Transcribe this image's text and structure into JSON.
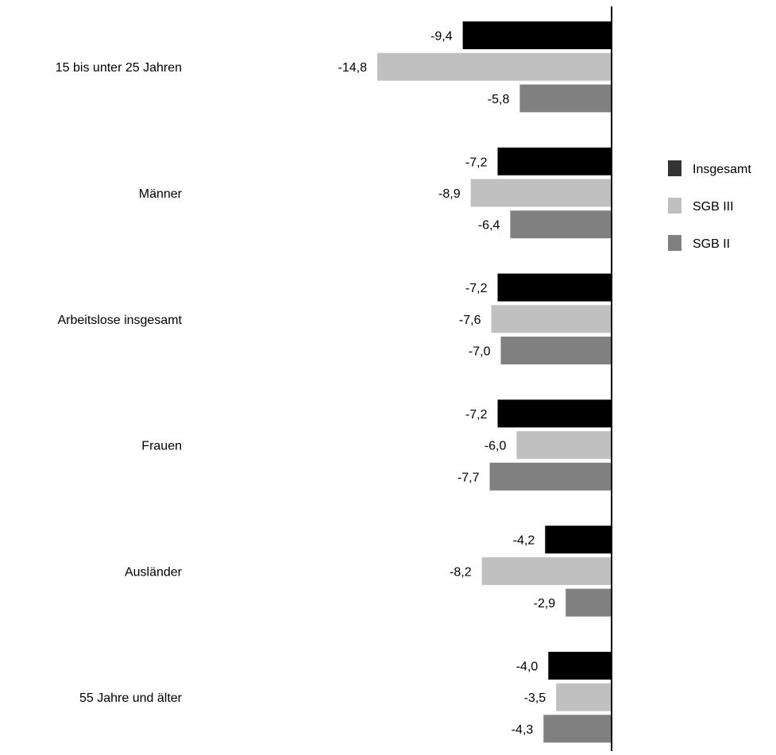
{
  "chart_data": {
    "type": "bar",
    "orientation": "horizontal",
    "categories": [
      "15 bis unter 25 Jahren",
      "Männer",
      "Arbeitslose insgesamt",
      "Frauen",
      "Ausländer",
      "55 Jahre und älter"
    ],
    "series": [
      {
        "name": "Insgesamt",
        "color": "#000000",
        "legend_color": "#333333",
        "values": [
          -9.4,
          -7.2,
          -7.2,
          -7.2,
          -4.2,
          -4.0
        ],
        "labels": [
          "-9,4",
          "-7,2",
          "-7,2",
          "-7,2",
          "-4,2",
          "-4,0"
        ]
      },
      {
        "name": "SGB III",
        "color": "#c0c0c0",
        "legend_color": "#c0c0c0",
        "values": [
          -14.8,
          -8.9,
          -7.6,
          -6.0,
          -8.2,
          -3.5
        ],
        "labels": [
          "-14,8",
          "-8,9",
          "-7,6",
          "-6,0",
          "-8,2",
          "-3,5"
        ]
      },
      {
        "name": "SGB II",
        "color": "#808080",
        "legend_color": "#808080",
        "values": [
          -5.8,
          -6.4,
          -7.0,
          -7.7,
          -2.9,
          -4.3
        ],
        "labels": [
          "-5,8",
          "-6,4",
          "-7,0",
          "-7,7",
          "-2,9",
          "-4,3"
        ]
      }
    ],
    "xlim": [
      -14.8,
      0
    ],
    "grid": false,
    "legend_position": "right"
  }
}
